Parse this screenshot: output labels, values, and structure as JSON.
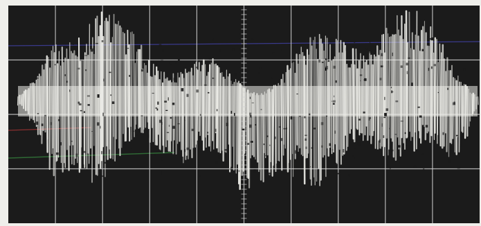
{
  "photo": {
    "subject": "oscilloscope-trace-photo",
    "colors": {
      "screen": "#1b1b1b",
      "trace": "#efefea",
      "graticule": "#cfcfcf",
      "stray_blue": "#3a3a8c",
      "stray_red": "#8a2f2f",
      "stray_green": "#2f6a35"
    },
    "graticule": {
      "vertical_divisions": 10,
      "horizontal_divisions": 4
    }
  }
}
